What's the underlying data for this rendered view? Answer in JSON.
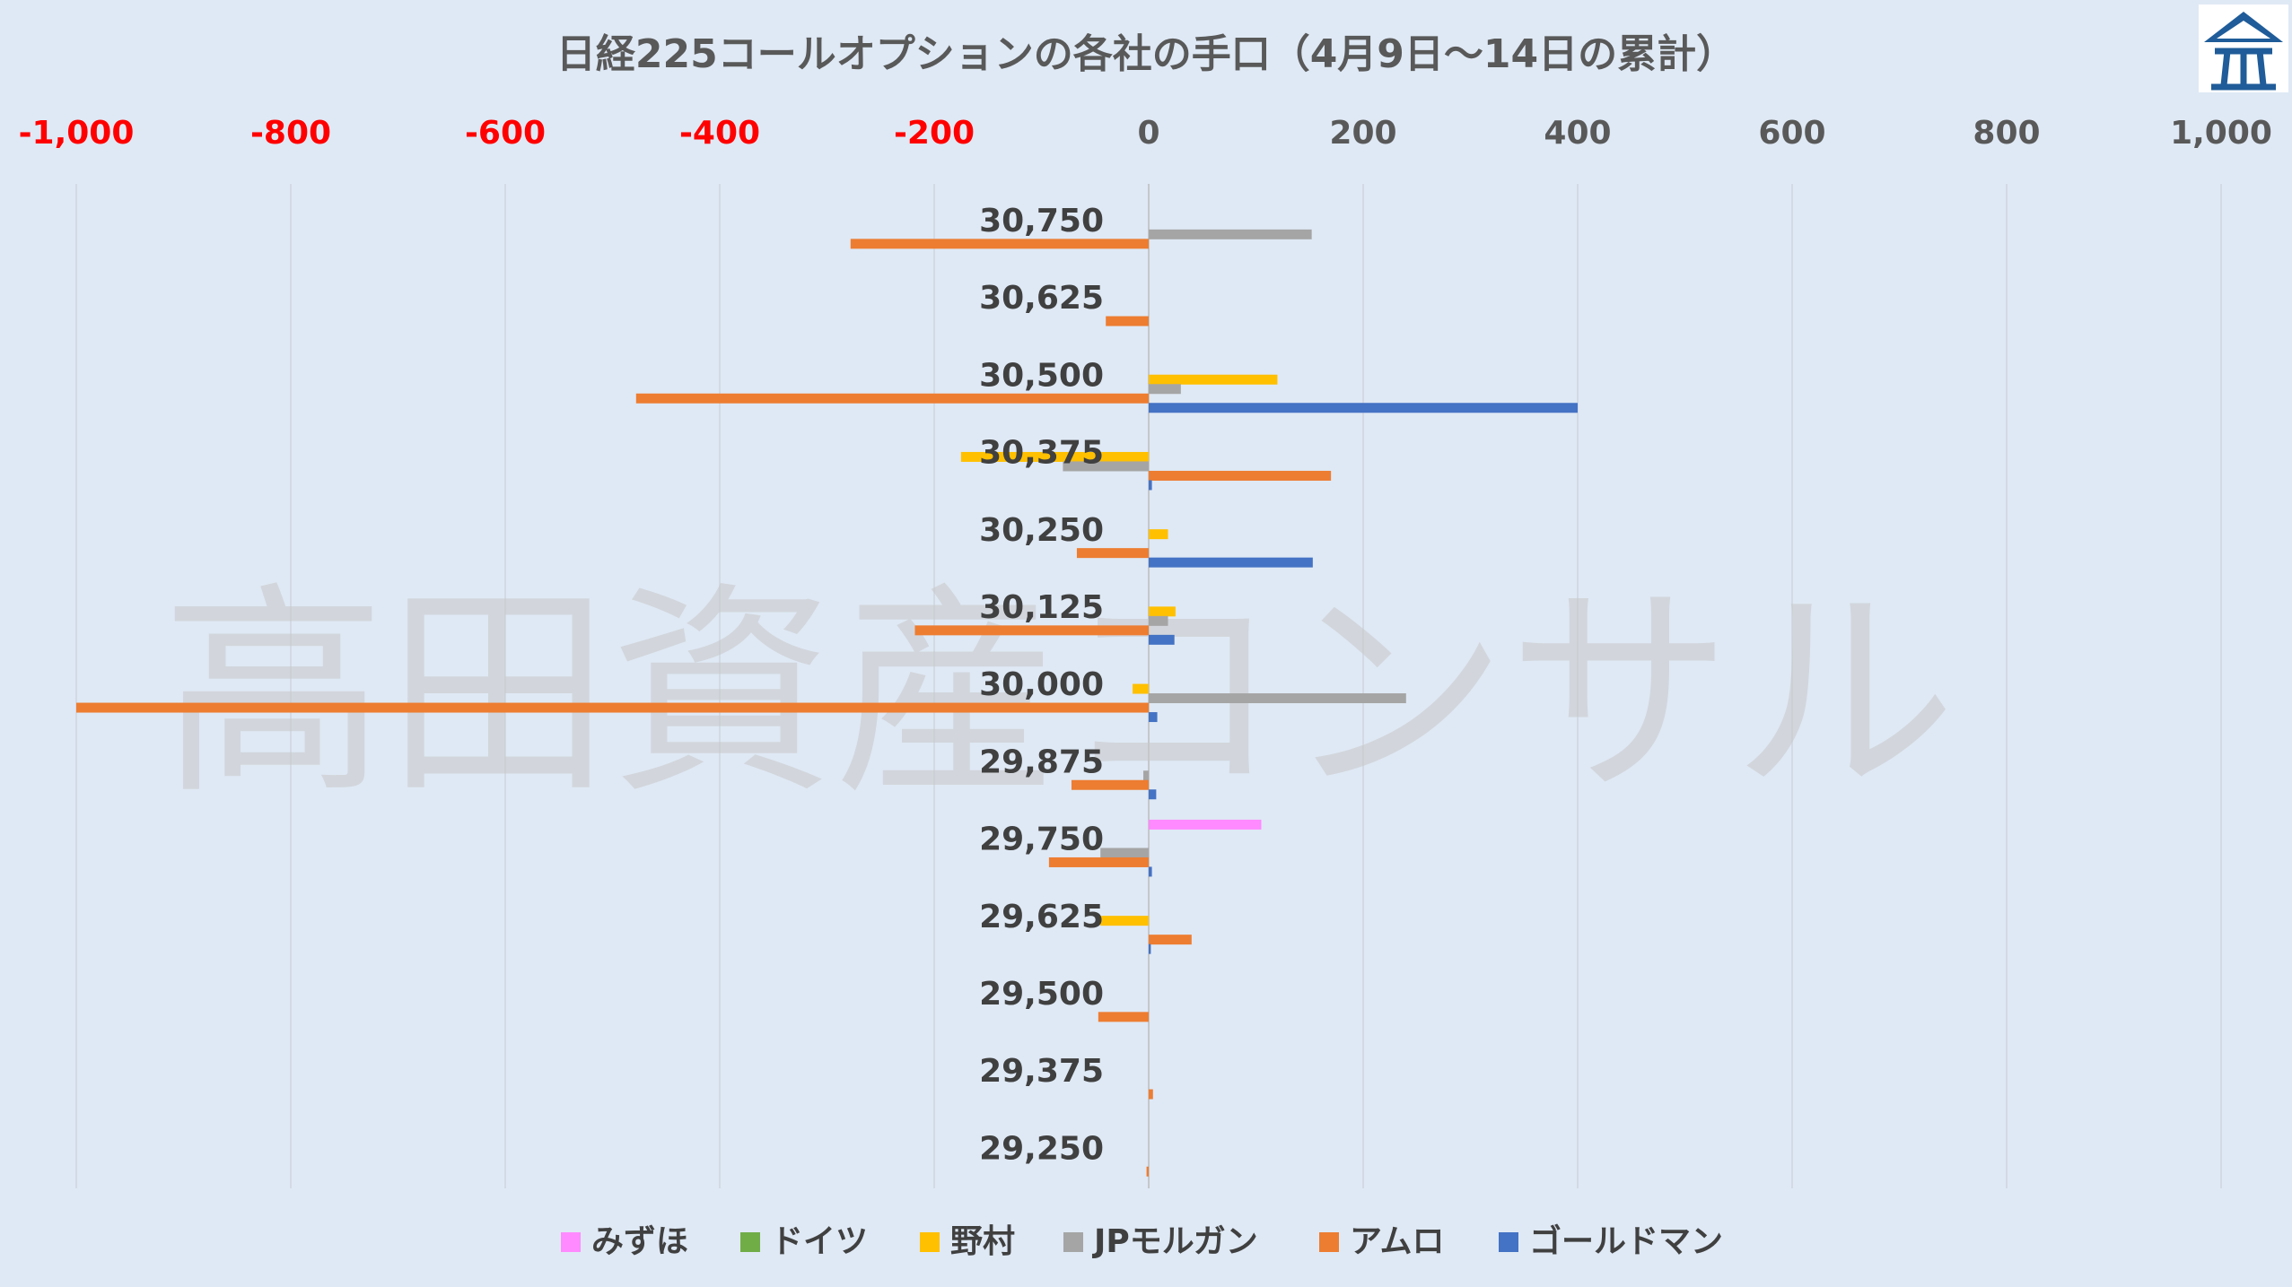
{
  "chart_data": {
    "type": "bar",
    "orientation": "horizontal",
    "title": "日経225コールオプションの各社の手口（4月9日～14日の累計）",
    "xlim": [
      -1000,
      1000
    ],
    "x_ticks": [
      "-1,000",
      "-800",
      "-600",
      "-400",
      "-200",
      "0",
      "200",
      "400",
      "600",
      "800",
      "1,000"
    ],
    "x_tick_values": [
      -1000,
      -800,
      -600,
      -400,
      -200,
      0,
      200,
      400,
      600,
      800,
      1000
    ],
    "x_axis_position": "top",
    "negative_tick_color": "#ff0000",
    "grid": true,
    "legend_position": "bottom",
    "categories": [
      "30,750",
      "30,625",
      "30,500",
      "30,375",
      "30,250",
      "30,125",
      "30,000",
      "29,875",
      "29,750",
      "29,625",
      "29,500",
      "29,375",
      "29,250"
    ],
    "series": [
      {
        "name": "みずほ",
        "color": "#ff8aff",
        "values": [
          0,
          0,
          0,
          0,
          0,
          0,
          0,
          0,
          105,
          0,
          0,
          0,
          0
        ]
      },
      {
        "name": "ドイツ",
        "color": "#70ad47",
        "values": [
          0,
          0,
          0,
          0,
          0,
          0,
          0,
          0,
          0,
          0,
          0,
          0,
          0
        ]
      },
      {
        "name": "野村",
        "color": "#ffc000",
        "values": [
          0,
          0,
          120,
          -175,
          18,
          25,
          -15,
          0,
          0,
          -45,
          0,
          0,
          0
        ]
      },
      {
        "name": "JPモルガン",
        "color": "#a5a5a5",
        "values": [
          152,
          0,
          30,
          -80,
          0,
          18,
          240,
          -5,
          -45,
          0,
          0,
          0,
          0
        ]
      },
      {
        "name": "アムロ",
        "color": "#ed7d31",
        "values": [
          -278,
          -40,
          -478,
          170,
          -67,
          -218,
          -1000,
          -72,
          -93,
          40,
          -47,
          4,
          -2
        ]
      },
      {
        "name": "ゴールドマン",
        "color": "#4472c4",
        "values": [
          0,
          0,
          400,
          3,
          153,
          24,
          8,
          7,
          3,
          2,
          0,
          0,
          0
        ]
      }
    ]
  },
  "watermark": "高田資産コンサル",
  "logo": {
    "icon": "shrine-roof-logo-icon",
    "color": "#1f5c99"
  }
}
